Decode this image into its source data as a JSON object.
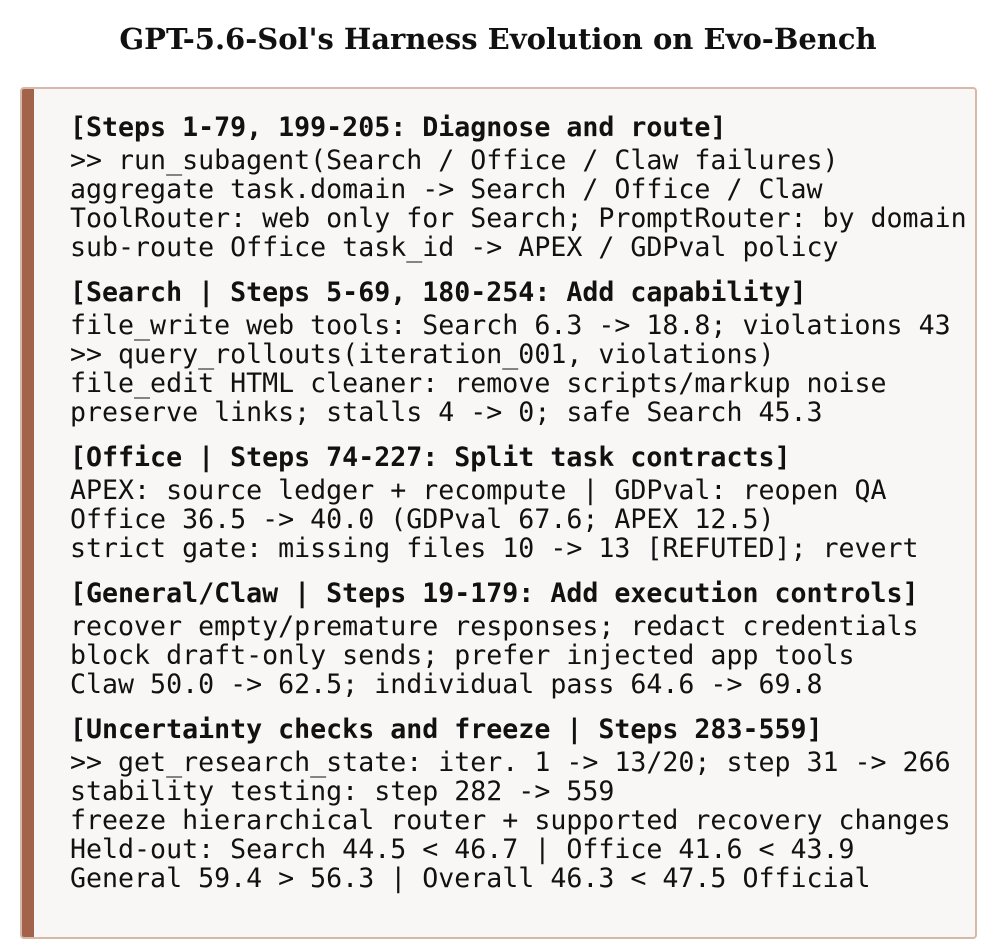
{
  "title": "GPT-5.6-Sol's Harness Evolution on Evo-Bench",
  "sections": [
    {
      "heading": "[Steps 1-79, 199-205: Diagnose and route]",
      "lines": [
        ">> run_subagent(Search / Office / Claw failures)",
        "aggregate task.domain -> Search / Office / Claw",
        "ToolRouter: web only for Search; PromptRouter: by domain",
        "sub-route Office task_id -> APEX / GDPval policy"
      ]
    },
    {
      "heading": "[Search | Steps 5-69, 180-254: Add capability]",
      "lines": [
        "file_write web tools: Search 6.3 -> 18.8; violations 43",
        ">> query_rollouts(iteration_001, violations)",
        "file_edit HTML cleaner: remove scripts/markup noise",
        "preserve links; stalls 4 -> 0; safe Search 45.3"
      ]
    },
    {
      "heading": "[Office | Steps 74-227: Split task contracts]",
      "lines": [
        "APEX: source ledger + recompute | GDPval: reopen QA",
        "Office 36.5 -> 40.0 (GDPval 67.6; APEX 12.5)",
        "strict gate: missing files 10 -> 13 [REFUTED]; revert"
      ]
    },
    {
      "heading": "[General/Claw | Steps 19-179: Add execution controls]",
      "lines": [
        "recover empty/premature responses; redact credentials",
        "block draft-only sends; prefer injected app tools",
        "Claw 50.0 -> 62.5; individual pass 64.6 -> 69.8"
      ]
    },
    {
      "heading": "[Uncertainty checks and freeze | Steps 283-559]",
      "lines": [
        ">> get_research_state: iter. 1 -> 13/20; step 31 -> 266",
        "stability testing: step 282 -> 559",
        "freeze hierarchical router + supported recovery changes",
        "Held-out: Search 44.5 < 46.7 | Office 41.6 < 43.9",
        "General 59.4 > 56.3 | Overall 46.3 < 47.5 Official"
      ]
    }
  ]
}
